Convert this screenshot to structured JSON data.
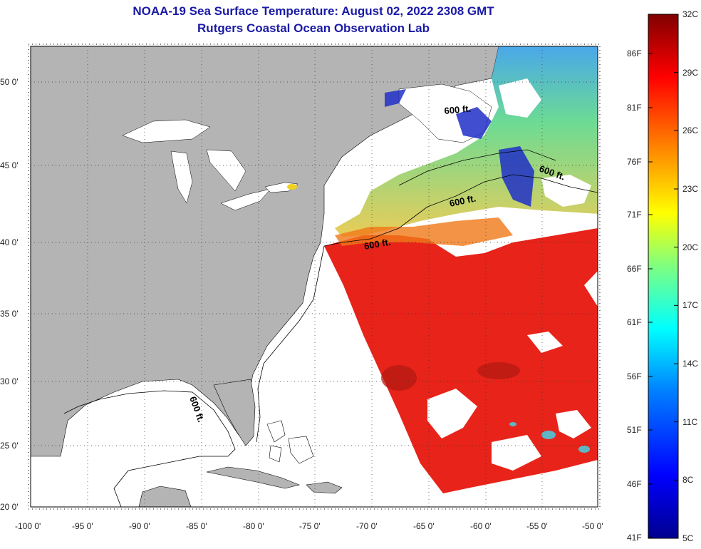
{
  "title": {
    "line1": "NOAA-19 Sea Surface Temperature:  August 02, 2022 2308 GMT",
    "line2": "Rutgers Coastal Ocean Observation Lab"
  },
  "map": {
    "lon_labels": [
      "-100 0'",
      "-95 0'",
      "-90 0'",
      "-85 0'",
      "-80 0'",
      "-75 0'",
      "-70 0'",
      "-65 0'",
      "-60 0'",
      "-55 0'",
      "-50 0'"
    ],
    "lat_labels": [
      "50 0'",
      "45 0'",
      "40 0'",
      "35 0'",
      "30 0'",
      "25 0'",
      "20 0'"
    ],
    "contour_label": "600 ft.",
    "colors": {
      "land": "#b4b4b4",
      "nodata": "#ffffff",
      "warm": "#e8231a",
      "frame": "#000000"
    }
  },
  "colorbar": {
    "celsius": [
      "32C",
      "29C",
      "26C",
      "23C",
      "20C",
      "17C",
      "14C",
      "11C",
      "8C",
      "5C"
    ],
    "fahrenheit": [
      "86F",
      "81F",
      "76F",
      "71F",
      "66F",
      "61F",
      "56F",
      "51F",
      "46F",
      "41F"
    ]
  }
}
